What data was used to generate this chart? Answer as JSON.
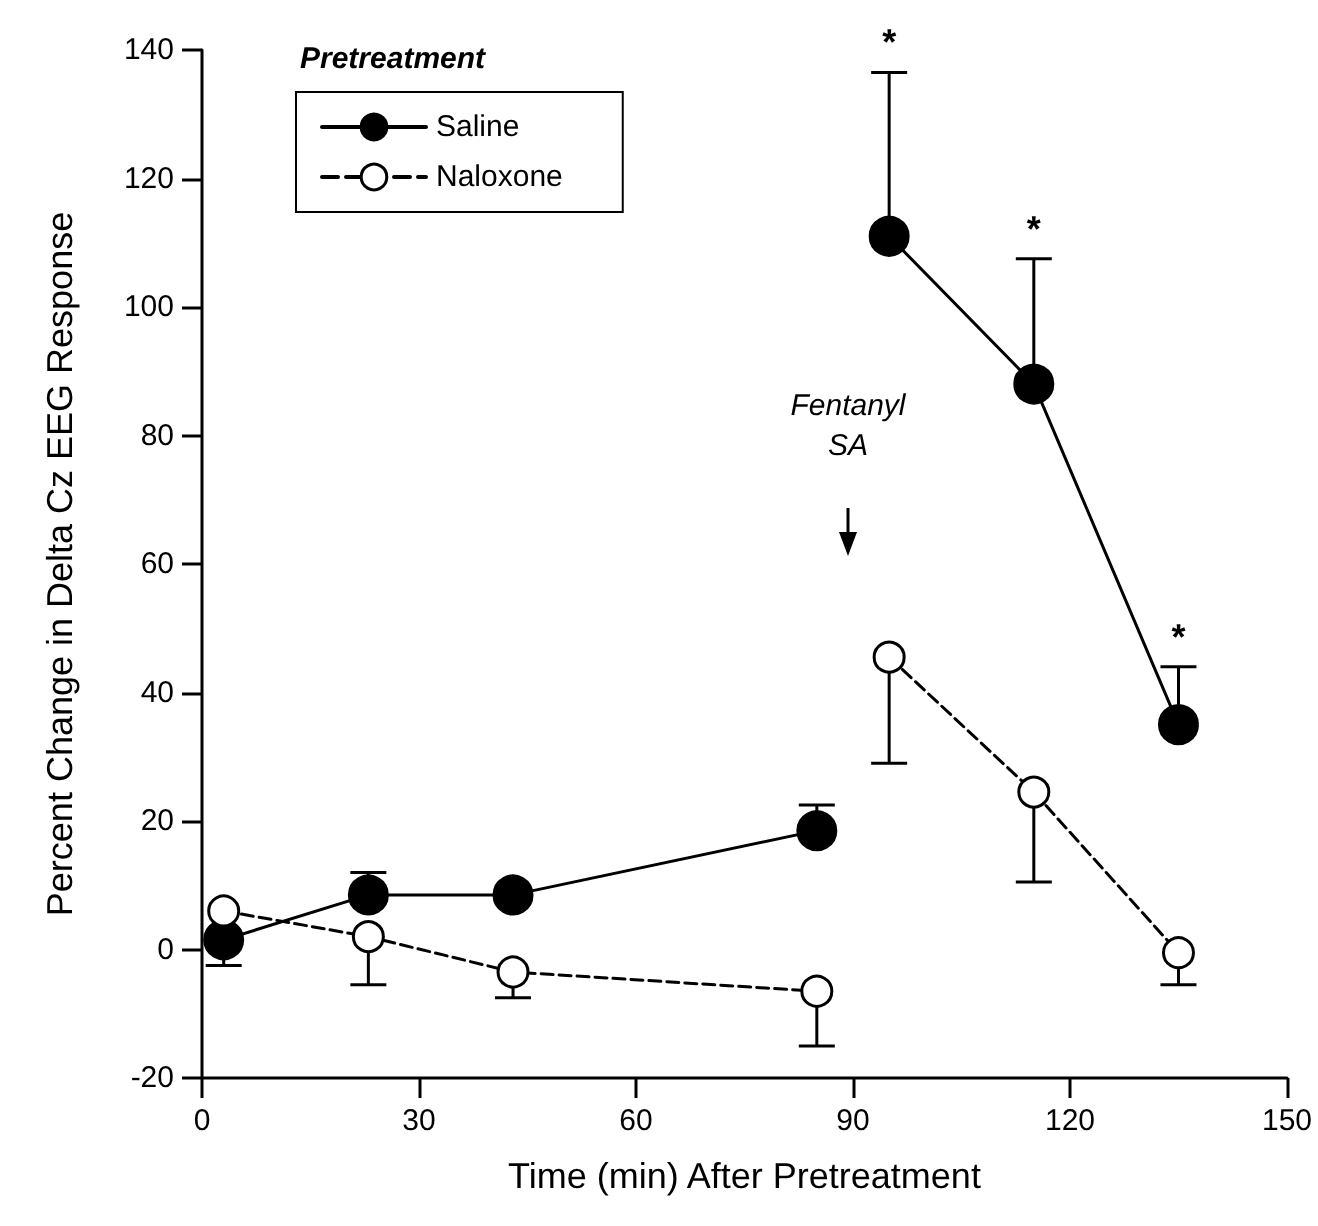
{
  "chart_data": {
    "type": "line",
    "xlabel": "Time (min) After Pretreatment",
    "ylabel": "Percent Change in Delta Cz EEG Response",
    "legend_title": "Pretreatment",
    "legend": "top left",
    "marker": "circle",
    "grid": false,
    "xlim": [
      0,
      150
    ],
    "xticks": [
      0,
      30,
      60,
      90,
      120,
      150
    ],
    "ylim": [
      -20,
      140
    ],
    "yticks": [
      -20,
      0,
      20,
      40,
      60,
      80,
      100,
      120,
      140
    ],
    "series": [
      {
        "name": "Saline",
        "color": "#000000",
        "line_style": "solid",
        "x": [
          3,
          23,
          43,
          85
        ],
        "values": [
          1.5,
          8.5,
          8.5,
          18.5
        ],
        "errors": [
          [
            -2.5,
            1.5
          ],
          [
            8.5,
            12
          ],
          null,
          [
            18.5,
            22.5
          ]
        ]
      },
      {
        "color": "#000000",
        "line_style": "solid",
        "x": [
          95,
          115,
          135
        ],
        "values": [
          111,
          88,
          35
        ],
        "errors": [
          [
            111,
            136.5
          ],
          [
            88,
            107.5
          ],
          [
            35,
            44
          ]
        ]
      },
      {
        "name": "Naloxone",
        "color": "#000000",
        "line_style": "dashed",
        "x": [
          3,
          23,
          43,
          85
        ],
        "values": [
          6,
          2,
          -3.5,
          -6.5
        ],
        "errors": [
          null,
          [
            -5.5,
            2
          ],
          [
            -7.5,
            -3.5
          ],
          [
            -15,
            -6.5
          ]
        ]
      },
      {
        "color": "#000000",
        "line_style": "dashed",
        "x": [
          95,
          115,
          135
        ],
        "values": [
          45.5,
          24.5,
          -0.5
        ],
        "errors": [
          [
            29,
            45.5
          ],
          [
            10.5,
            24.5
          ],
          [
            -5.5,
            -0.5
          ]
        ]
      }
    ],
    "annotations": [
      {
        "text": "*",
        "x": 95,
        "y": 136.5
      },
      {
        "text": "*",
        "x": 115,
        "y": 107.5
      },
      {
        "text": "*",
        "x": 135,
        "y": 44
      },
      "Fentanyl\nSA"
    ]
  }
}
